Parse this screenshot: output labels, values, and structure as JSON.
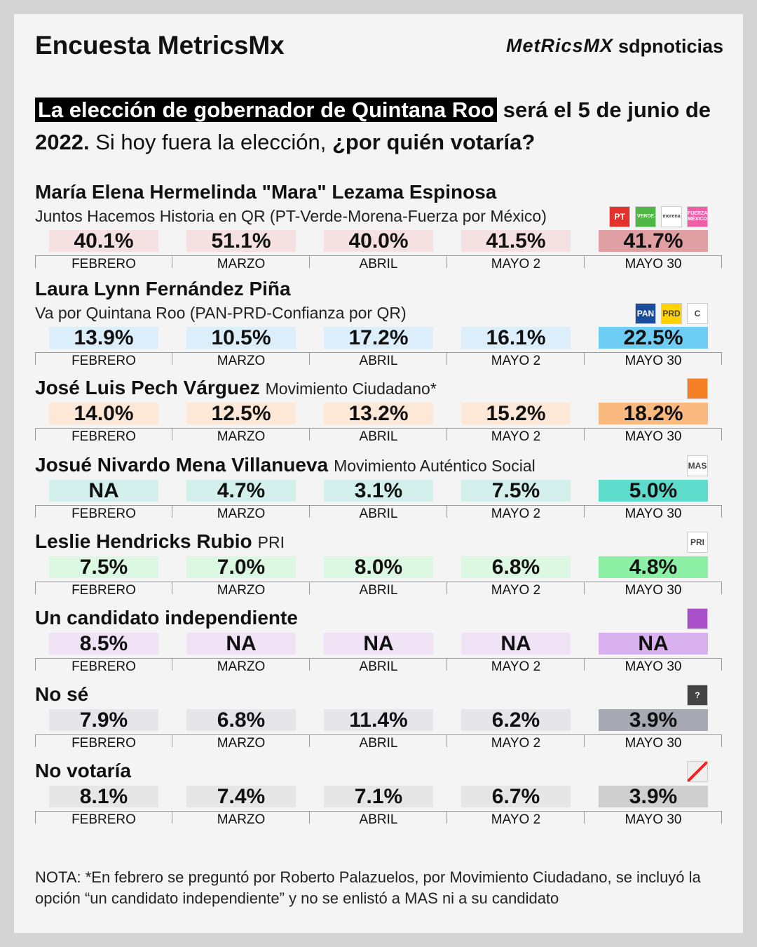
{
  "header": {
    "title": "Encuesta MetricsMx",
    "logo_metrics": "MetRicsMX",
    "logo_sdp": "sdpnoticias"
  },
  "question": {
    "highlight": "La elección de gobernador de Quintana Roo",
    "bold_a": "será el 5 de junio de 2022.",
    "plain": "Si hoy fuera la elección,",
    "bold_b": "¿por quién votaría?"
  },
  "months": [
    "FEBRERO",
    "MARZO",
    "ABRIL",
    "MAYO 2",
    "MAYO 30"
  ],
  "candidates": [
    {
      "name": "María Elena Hermelinda \"Mara\" Lezama Espinosa",
      "party": "Juntos Hacemos Historia en QR (PT-Verde-Morena-Fuerza por México)",
      "party_line": true,
      "values": [
        "40.1%",
        "51.1%",
        "40.0%",
        "41.5%",
        "41.7%"
      ],
      "light": "#f5e1e1",
      "strong": "#e0a0a3",
      "logos": [
        {
          "label": "PT",
          "color": "#e4312b"
        },
        {
          "label": "VERDE",
          "color": "#50b747"
        },
        {
          "label": "morena",
          "color": "#ffffff"
        },
        {
          "label": "FUERZA MÉXICO",
          "color": "#ee5fa7"
        }
      ]
    },
    {
      "name": "Laura Lynn Fernández Piña",
      "party": "Va por Quintana Roo (PAN-PRD-Confianza por QR)",
      "party_line": true,
      "values": [
        "13.9%",
        "10.5%",
        "17.2%",
        "16.1%",
        "22.5%"
      ],
      "light": "#dbeefa",
      "strong": "#6ecdf5",
      "logos": [
        {
          "label": "PAN",
          "color": "#1b4c9c"
        },
        {
          "label": "PRD",
          "color": "#ffd200"
        },
        {
          "label": "C",
          "color": "#ffffff"
        }
      ]
    },
    {
      "name": "José Luis Pech Várguez",
      "party": "Movimiento Ciudadano*",
      "party_line": false,
      "values": [
        "14.0%",
        "12.5%",
        "13.2%",
        "15.2%",
        "18.2%"
      ],
      "light": "#fde8d8",
      "strong": "#f9b97f",
      "logos": [
        {
          "color": "#f58025"
        }
      ]
    },
    {
      "name": "Josué Nivardo Mena Villanueva",
      "party": "Movimiento Auténtico Social",
      "party_line": false,
      "values": [
        "NA",
        "4.7%",
        "3.1%",
        "7.5%",
        "5.0%"
      ],
      "light": "#d3f0ec",
      "strong": "#5ddccb",
      "logos": [
        {
          "label": "MAS",
          "color": "#ffffff"
        }
      ]
    },
    {
      "name": "Leslie Hendricks Rubio",
      "party": "PRI",
      "party_line": false,
      "values": [
        "7.5%",
        "7.0%",
        "8.0%",
        "6.8%",
        "4.8%"
      ],
      "light": "#dcf7e2",
      "strong": "#8cf0a5",
      "logos": [
        {
          "label": "PRI",
          "color": "#ffffff"
        }
      ]
    },
    {
      "name": "Un candidato independiente",
      "values": [
        "8.5%",
        "NA",
        "NA",
        "NA",
        "NA"
      ],
      "light": "#f0e3f5",
      "strong": "#d9b1ef",
      "logos": [
        {
          "color": "#a94fc9"
        }
      ]
    },
    {
      "name": "No sé",
      "values": [
        "7.9%",
        "6.8%",
        "11.4%",
        "6.2%",
        "3.9%"
      ],
      "light": "#e6e6e8",
      "strong": "#a9a9b3",
      "logos": [
        {
          "label": "?",
          "color": "#444444"
        }
      ]
    },
    {
      "name": "No votaría",
      "values": [
        "8.1%",
        "7.4%",
        "7.1%",
        "6.7%",
        "3.9%"
      ],
      "light": "#e6e6e6",
      "strong": "#cfcfcf",
      "logos": [
        {
          "color": "#eeeeee"
        }
      ]
    }
  ],
  "note": "NOTA: *En febrero se preguntó por Roberto Palazuelos, por Movimiento Ciudadano, se incluyó la opción “un candidato independiente” y no se enlistó a MAS ni a su candidato"
}
